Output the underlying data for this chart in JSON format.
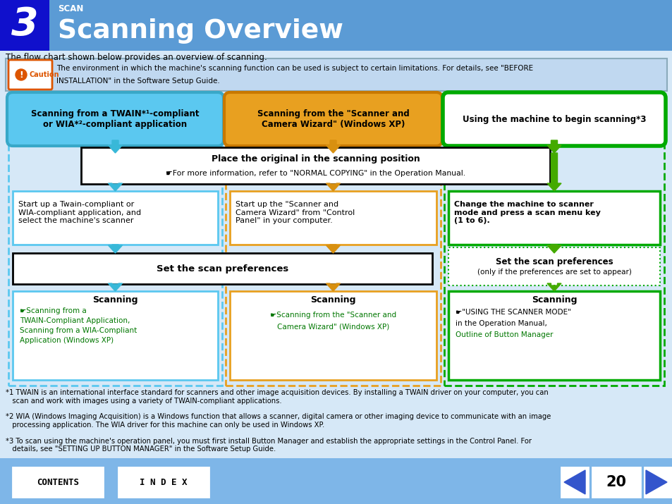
{
  "title": "Scanning Overview",
  "scan_label": "SCAN",
  "chapter_num": "3",
  "header_bg": "#5B9BD5",
  "header_dark_bg": "#1010CC",
  "body_bg": "#D6E8F7",
  "footer_bg": "#7EB6E8",
  "intro_text": "The flow chart shown below provides an overview of scanning.",
  "caution_text1": "The environment in which the machine's scanning function can be used is subject to certain limitations. For details, see \"BEFORE",
  "caution_text2": "INSTALLATION\" in the Software Setup Guide.",
  "caution_bg": "#C0D8F0",
  "caution_border": "#5B9BD5",
  "box1_label": "Scanning from a TWAIN*¹-compliant\nor WIA*²-compliant application",
  "box1_fill": "#5BC8F0",
  "box2_label": "Scanning from the \"Scanner and\nCamera Wizard\" (Windows XP)",
  "box2_fill": "#E8A020",
  "box3_label": "Using the machine to begin scanning*3",
  "box3_border": "#00AA00",
  "step1a_text": "Start up a Twain-compliant or\nWIA-compliant application, and\nselect the machine's scanner",
  "step2a_text": "Start up the \"Scanner and\nCamera Wizard\" from \"Control\nPanel\" in your computer.",
  "step3a_text": "Change the machine to scanner\nmode and press a scan menu key\n(1 to 6).",
  "scan_pref_text": "Set the scan preferences",
  "scan_pref2_line1": "Set the scan preferences",
  "scan_pref2_line2": "(only if the preferences are set to appear)",
  "scan_box1_line1": "Scanning",
  "scan_box1_link1": "☛Scanning from a",
  "scan_box1_link2": "TWAIN-Compliant Application,",
  "scan_box1_link3": "Scanning from a WIA-Compliant",
  "scan_box1_link4": "Application (Windows XP)",
  "scan_box2_line1": "Scanning",
  "scan_box2_link1": "☛Scanning from the \"Scanner and",
  "scan_box2_link2": "Camera Wizard\" (Windows XP)",
  "scan_box3_line1": "Scanning",
  "scan_box3_text2": "☛\"USING THE SCANNER MODE\"",
  "scan_box3_text3": "in the Operation Manual,",
  "scan_box3_link": "Outline of Button Manager",
  "footnote1a": "*1 TWAIN is an international interface standard for scanners and other image acquisition devices. By installing a TWAIN driver on your computer, you can",
  "footnote1b": "   scan and work with images using a variety of TWAIN-compliant applications.",
  "footnote2a": "*2 WIA (Windows Imaging Acquisition) is a Windows function that allows a scanner, digital camera or other imaging device to communicate with an image",
  "footnote2b": "   processing application. The WIA driver for this machine can only be used in Windows XP.",
  "footnote3a": "*3 To scan using the machine's operation panel, you must first install Button Manager and establish the appropriate settings in the Control Panel. For",
  "footnote3b": "   details, see \"SETTING UP BUTTON MANAGER\" in the Software Setup Guide.",
  "page_num": "20",
  "arrow_cyan": "#38B8D8",
  "arrow_orange": "#D89010",
  "arrow_green": "#44AA00",
  "cyan_color": "#5BC8F0",
  "orange_color": "#E8A020",
  "green_color": "#00AA00"
}
